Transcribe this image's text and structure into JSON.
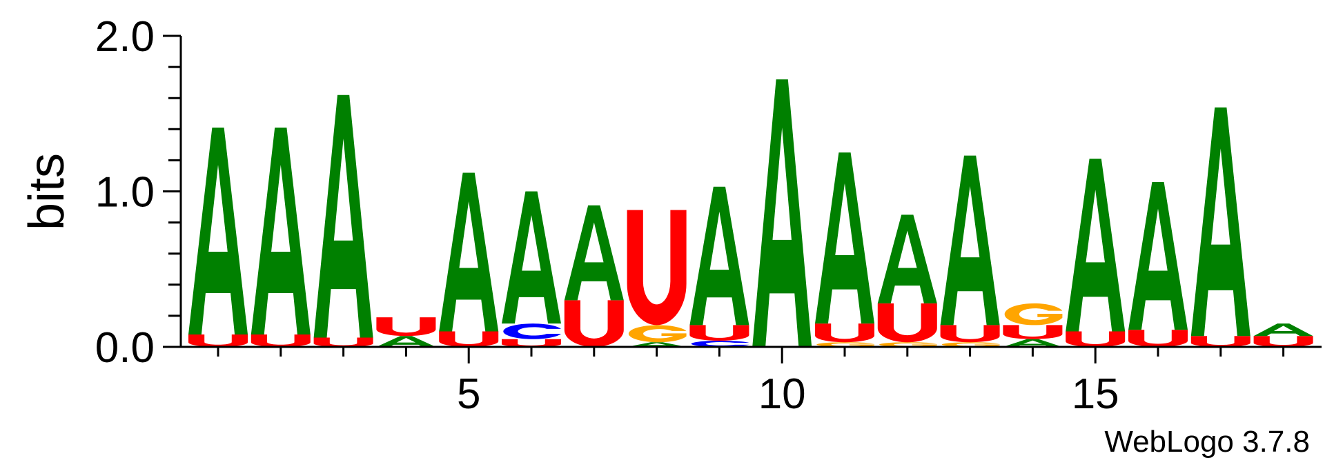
{
  "chart_data": {
    "type": "sequence-logo",
    "ylabel": "bits",
    "ylim": [
      0,
      2
    ],
    "y_ticks": [
      "0.0",
      "1.0",
      "2.0"
    ],
    "x_ticks": [
      "5",
      "10",
      "15"
    ],
    "x_tick_positions": [
      5,
      10,
      15
    ],
    "footer": "WebLogo 3.7.8",
    "colors": {
      "A": "#008000",
      "U": "#ff0000",
      "G": "#ffa500",
      "C": "#0000ff"
    },
    "positions": [
      {
        "index": 1,
        "stack": [
          {
            "letter": "U",
            "height": 0.08
          },
          {
            "letter": "A",
            "height": 1.33
          }
        ]
      },
      {
        "index": 2,
        "stack": [
          {
            "letter": "U",
            "height": 0.08
          },
          {
            "letter": "A",
            "height": 1.33
          }
        ]
      },
      {
        "index": 3,
        "stack": [
          {
            "letter": "U",
            "height": 0.06
          },
          {
            "letter": "A",
            "height": 1.56
          }
        ]
      },
      {
        "index": 4,
        "stack": [
          {
            "letter": "A",
            "height": 0.07
          },
          {
            "letter": "U",
            "height": 0.12
          }
        ]
      },
      {
        "index": 5,
        "stack": [
          {
            "letter": "U",
            "height": 0.1
          },
          {
            "letter": "A",
            "height": 1.02
          }
        ]
      },
      {
        "index": 6,
        "stack": [
          {
            "letter": "U",
            "height": 0.05
          },
          {
            "letter": "C",
            "height": 0.1
          },
          {
            "letter": "A",
            "height": 0.85
          }
        ]
      },
      {
        "index": 7,
        "stack": [
          {
            "letter": "U",
            "height": 0.3
          },
          {
            "letter": "A",
            "height": 0.61
          }
        ]
      },
      {
        "index": 8,
        "stack": [
          {
            "letter": "A",
            "height": 0.03
          },
          {
            "letter": "G",
            "height": 0.11
          },
          {
            "letter": "U",
            "height": 0.74
          }
        ]
      },
      {
        "index": 9,
        "stack": [
          {
            "letter": "C",
            "height": 0.04
          },
          {
            "letter": "U",
            "height": 0.1
          },
          {
            "letter": "A",
            "height": 0.89
          }
        ]
      },
      {
        "index": 10,
        "stack": [
          {
            "letter": "A",
            "height": 1.72
          }
        ]
      },
      {
        "index": 11,
        "stack": [
          {
            "letter": "G",
            "height": 0.03
          },
          {
            "letter": "U",
            "height": 0.12
          },
          {
            "letter": "A",
            "height": 1.1
          }
        ]
      },
      {
        "index": 12,
        "stack": [
          {
            "letter": "G",
            "height": 0.03
          },
          {
            "letter": "U",
            "height": 0.25
          },
          {
            "letter": "A",
            "height": 0.57
          }
        ]
      },
      {
        "index": 13,
        "stack": [
          {
            "letter": "G",
            "height": 0.03
          },
          {
            "letter": "U",
            "height": 0.11
          },
          {
            "letter": "A",
            "height": 1.09
          }
        ]
      },
      {
        "index": 14,
        "stack": [
          {
            "letter": "A",
            "height": 0.05
          },
          {
            "letter": "U",
            "height": 0.09
          },
          {
            "letter": "G",
            "height": 0.14
          }
        ]
      },
      {
        "index": 15,
        "stack": [
          {
            "letter": "U",
            "height": 0.1
          },
          {
            "letter": "A",
            "height": 1.11
          }
        ]
      },
      {
        "index": 16,
        "stack": [
          {
            "letter": "U",
            "height": 0.11
          },
          {
            "letter": "A",
            "height": 0.95
          }
        ]
      },
      {
        "index": 17,
        "stack": [
          {
            "letter": "U",
            "height": 0.07
          },
          {
            "letter": "A",
            "height": 1.47
          }
        ]
      },
      {
        "index": 18,
        "stack": [
          {
            "letter": "U",
            "height": 0.07
          },
          {
            "letter": "A",
            "height": 0.08
          }
        ]
      }
    ]
  }
}
